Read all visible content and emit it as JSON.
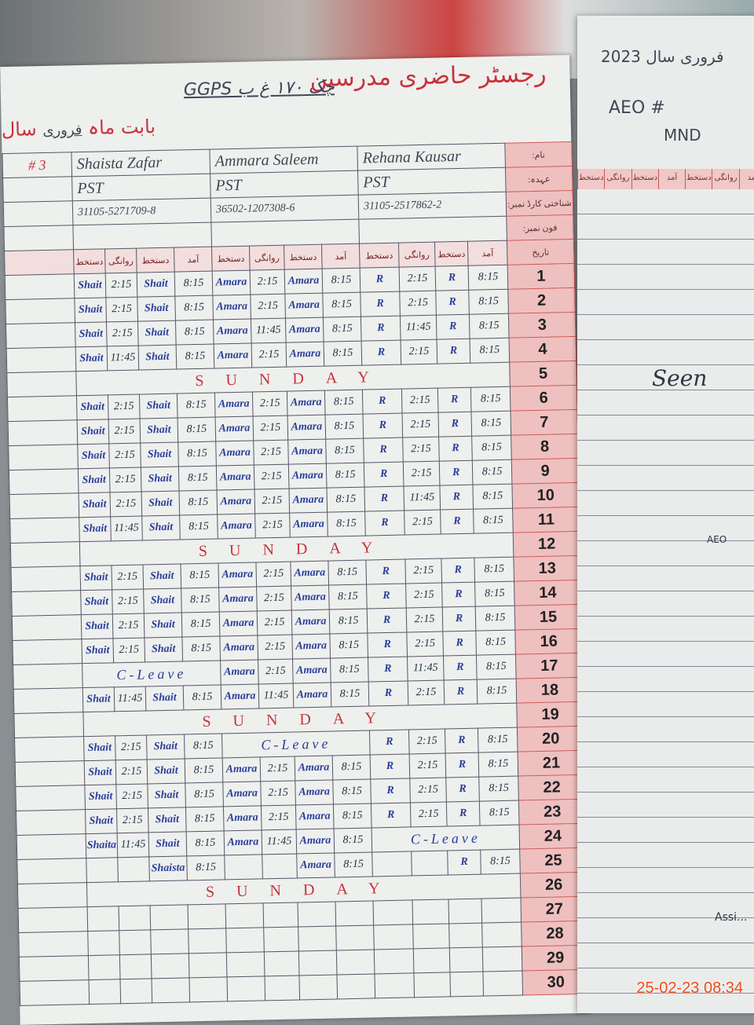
{
  "header": {
    "title": "رجسٹر حاضری مدرسین",
    "school": "GGPS چک ۱۷۰ غ ب",
    "month_label": "بابت ماہ",
    "month_value": "فروری",
    "year_label": "سال",
    "left_fragment": "# 3",
    "row_labels": [
      "نام:",
      "عہدہ:",
      "شناختی کارڈ نمبر:",
      "فون نمبر:",
      "تاریخ"
    ],
    "column_headers": [
      "دستخط",
      "روانگی",
      "دستخط",
      "آمد"
    ]
  },
  "teachers": [
    {
      "name": "Shaista Zafar",
      "designation": "PST",
      "cnic": "31105-5271709-8"
    },
    {
      "name": "Ammara Saleem",
      "designation": "PST",
      "cnic": "36502-1207308-6"
    },
    {
      "name": "Rehana Kausar",
      "designation": "PST",
      "cnic": "31105-2517862-2"
    }
  ],
  "notes": {
    "sunday": "SUNDAY",
    "leave": "C-Leave"
  },
  "rows": [
    {
      "day": "1",
      "cells": [
        [
          "Shait",
          "2:15",
          "Shait",
          "8:15"
        ],
        [
          "Amara",
          "2:15",
          "Amara",
          "8:15"
        ],
        [
          "R",
          "2:15",
          "R",
          "8:15"
        ]
      ]
    },
    {
      "day": "2",
      "cells": [
        [
          "Shait",
          "2:15",
          "Shait",
          "8:15"
        ],
        [
          "Amara",
          "2:15",
          "Amara",
          "8:15"
        ],
        [
          "R",
          "2:15",
          "R",
          "8:15"
        ]
      ]
    },
    {
      "day": "3",
      "cells": [
        [
          "Shait",
          "2:15",
          "Shait",
          "8:15"
        ],
        [
          "Amara",
          "11:45",
          "Amara",
          "8:15"
        ],
        [
          "R",
          "11:45",
          "R",
          "8:15"
        ]
      ]
    },
    {
      "day": "4",
      "cells": [
        [
          "Shait",
          "11:45",
          "Shait",
          "8:15"
        ],
        [
          "Amara",
          "2:15",
          "Amara",
          "8:15"
        ],
        [
          "R",
          "2:15",
          "R",
          "8:15"
        ]
      ]
    },
    {
      "day": "5",
      "note": "sunday"
    },
    {
      "day": "6",
      "cells": [
        [
          "Shait",
          "2:15",
          "Shait",
          "8:15"
        ],
        [
          "Amara",
          "2:15",
          "Amara",
          "8:15"
        ],
        [
          "R",
          "2:15",
          "R",
          "8:15"
        ]
      ]
    },
    {
      "day": "7",
      "cells": [
        [
          "Shait",
          "2:15",
          "Shait",
          "8:15"
        ],
        [
          "Amara",
          "2:15",
          "Amara",
          "8:15"
        ],
        [
          "R",
          "2:15",
          "R",
          "8:15"
        ]
      ]
    },
    {
      "day": "8",
      "cells": [
        [
          "Shait",
          "2:15",
          "Shait",
          "8:15"
        ],
        [
          "Amara",
          "2:15",
          "Amara",
          "8:15"
        ],
        [
          "R",
          "2:15",
          "R",
          "8:15"
        ]
      ]
    },
    {
      "day": "9",
      "cells": [
        [
          "Shait",
          "2:15",
          "Shait",
          "8:15"
        ],
        [
          "Amara",
          "2:15",
          "Amara",
          "8:15"
        ],
        [
          "R",
          "2:15",
          "R",
          "8:15"
        ]
      ]
    },
    {
      "day": "10",
      "cells": [
        [
          "Shait",
          "2:15",
          "Shait",
          "8:15"
        ],
        [
          "Amara",
          "2:15",
          "Amara",
          "8:15"
        ],
        [
          "R",
          "11:45",
          "R",
          "8:15"
        ]
      ]
    },
    {
      "day": "11",
      "cells": [
        [
          "Shait",
          "11:45",
          "Shait",
          "8:15"
        ],
        [
          "Amara",
          "2:15",
          "Amara",
          "8:15"
        ],
        [
          "R",
          "2:15",
          "R",
          "8:15"
        ]
      ]
    },
    {
      "day": "12",
      "note": "sunday"
    },
    {
      "day": "13",
      "cells": [
        [
          "Shait",
          "2:15",
          "Shait",
          "8:15"
        ],
        [
          "Amara",
          "2:15",
          "Amara",
          "8:15"
        ],
        [
          "R",
          "2:15",
          "R",
          "8:15"
        ]
      ]
    },
    {
      "day": "14",
      "cells": [
        [
          "Shait",
          "2:15",
          "Shait",
          "8:15"
        ],
        [
          "Amara",
          "2:15",
          "Amara",
          "8:15"
        ],
        [
          "R",
          "2:15",
          "R",
          "8:15"
        ]
      ]
    },
    {
      "day": "15",
      "cells": [
        [
          "Shait",
          "2:15",
          "Shait",
          "8:15"
        ],
        [
          "Amara",
          "2:15",
          "Amara",
          "8:15"
        ],
        [
          "R",
          "2:15",
          "R",
          "8:15"
        ]
      ]
    },
    {
      "day": "16",
      "cells": [
        [
          "Shait",
          "2:15",
          "Shait",
          "8:15"
        ],
        [
          "Amara",
          "2:15",
          "Amara",
          "8:15"
        ],
        [
          "R",
          "2:15",
          "R",
          "8:15"
        ]
      ]
    },
    {
      "day": "17",
      "cells": [
        "leave",
        [
          "Amara",
          "2:15",
          "Amara",
          "8:15"
        ],
        [
          "R",
          "11:45",
          "R",
          "8:15"
        ]
      ]
    },
    {
      "day": "18",
      "cells": [
        [
          "Shait",
          "11:45",
          "Shait",
          "8:15"
        ],
        [
          "Amara",
          "11:45",
          "Amara",
          "8:15"
        ],
        [
          "R",
          "2:15",
          "R",
          "8:15"
        ]
      ]
    },
    {
      "day": "19",
      "note": "sunday"
    },
    {
      "day": "20",
      "cells": [
        [
          "Shait",
          "2:15",
          "Shait",
          "8:15"
        ],
        "leave",
        [
          "R",
          "2:15",
          "R",
          "8:15"
        ]
      ]
    },
    {
      "day": "21",
      "cells": [
        [
          "Shait",
          "2:15",
          "Shait",
          "8:15"
        ],
        [
          "Amara",
          "2:15",
          "Amara",
          "8:15"
        ],
        [
          "R",
          "2:15",
          "R",
          "8:15"
        ]
      ]
    },
    {
      "day": "22",
      "cells": [
        [
          "Shait",
          "2:15",
          "Shait",
          "8:15"
        ],
        [
          "Amara",
          "2:15",
          "Amara",
          "8:15"
        ],
        [
          "R",
          "2:15",
          "R",
          "8:15"
        ]
      ]
    },
    {
      "day": "23",
      "cells": [
        [
          "Shait",
          "2:15",
          "Shait",
          "8:15"
        ],
        [
          "Amara",
          "2:15",
          "Amara",
          "8:15"
        ],
        [
          "R",
          "2:15",
          "R",
          "8:15"
        ]
      ]
    },
    {
      "day": "24",
      "cells": [
        [
          "Shaita",
          "11:45",
          "Shait",
          "8:15"
        ],
        [
          "Amara",
          "11:45",
          "Amara",
          "8:15"
        ],
        "leave"
      ]
    },
    {
      "day": "25",
      "cells": [
        [
          "",
          "",
          "Shaista",
          "8:15"
        ],
        [
          "",
          "",
          "Amara",
          "8:15"
        ],
        [
          "",
          "",
          "R",
          "8:15"
        ]
      ]
    },
    {
      "day": "26",
      "note": "sunday"
    },
    {
      "day": "27",
      "cells": [
        [
          "",
          "",
          "",
          ""
        ],
        [
          "",
          "",
          "",
          ""
        ],
        [
          "",
          "",
          "",
          ""
        ]
      ]
    },
    {
      "day": "28",
      "cells": [
        [
          "",
          "",
          "",
          ""
        ],
        [
          "",
          "",
          "",
          ""
        ],
        [
          "",
          "",
          "",
          ""
        ]
      ]
    },
    {
      "day": "29",
      "cells": [
        [
          "",
          "",
          "",
          ""
        ],
        [
          "",
          "",
          "",
          ""
        ],
        [
          "",
          "",
          "",
          ""
        ]
      ]
    },
    {
      "day": "30",
      "cells": [
        [
          "",
          "",
          "",
          ""
        ],
        [
          "",
          "",
          "",
          ""
        ],
        [
          "",
          "",
          "",
          ""
        ]
      ]
    }
  ],
  "right_page": {
    "year": "فروری سال 2023",
    "aeo": "AEO #",
    "markaz": "MND",
    "headers": [
      "آمد",
      "روانگی",
      "دستخط",
      "آمد",
      "دستخط",
      "روانگی",
      "دستخط"
    ],
    "seen": "Seen",
    "aeo_sign": "AEO",
    "assistant": "Assi..."
  },
  "timestamp": "25-02-23  08:34"
}
